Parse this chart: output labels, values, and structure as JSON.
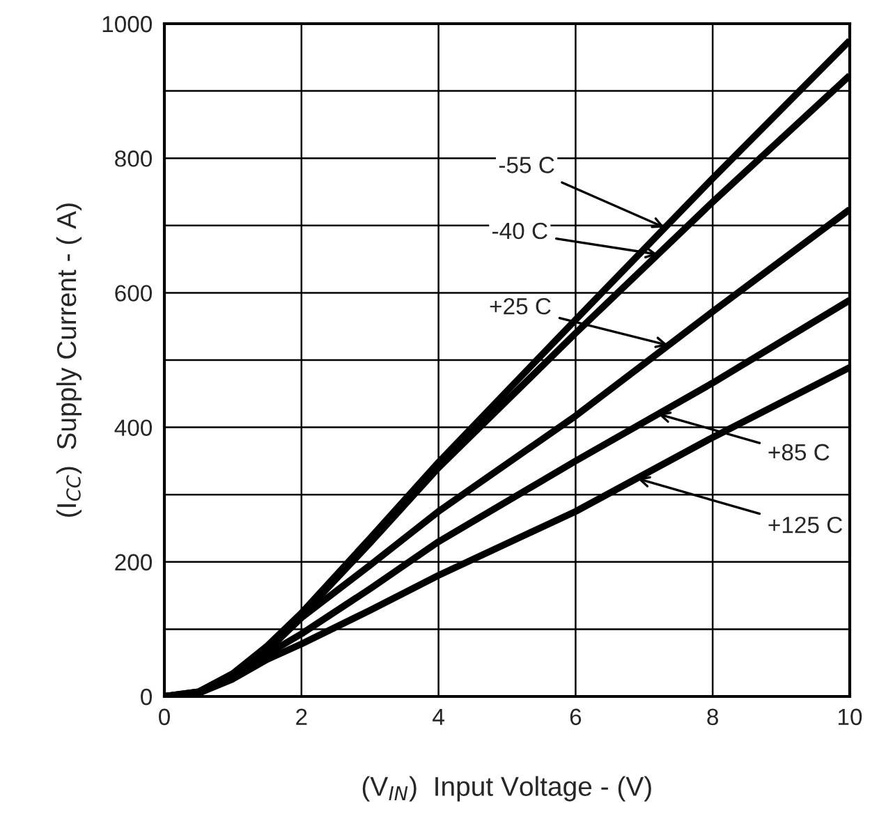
{
  "chart_data": {
    "type": "line",
    "xlabel": "(V$_{IN}$)  Input Voltage - (V)",
    "ylabel": "(I$_{CC}$)  Supply Current - ( A)",
    "x": [
      0,
      0.5,
      1,
      1.5,
      2,
      3,
      4,
      6,
      8,
      10
    ],
    "series": [
      {
        "color": "#000000",
        "values": [
          0,
          7,
          34,
          75,
          124,
          235,
          348,
          560,
          770,
          975
        ]
      },
      {
        "color": "#000000",
        "values": [
          0,
          7,
          33,
          73,
          120,
          228,
          340,
          540,
          735,
          923
        ]
      },
      {
        "color": "#000000",
        "values": [
          0,
          6,
          30,
          68,
          117,
          195,
          275,
          417,
          572,
          724
        ]
      },
      {
        "color": "#000000",
        "values": [
          0,
          5,
          28,
          63,
          93,
          160,
          230,
          350,
          466,
          589
        ]
      },
      {
        "color": "#000000",
        "values": [
          0,
          5,
          26,
          55,
          78,
          128,
          180,
          275,
          385,
          489
        ]
      }
    ],
    "annotations": [
      {
        "text": "-55 C",
        "x": 7.3,
        "y": 697
      },
      {
        "text": "-40 C",
        "x": 7.2,
        "y": 657
      },
      {
        "text": "+25 C",
        "x": 7.35,
        "y": 522
      },
      {
        "text": "+85 C",
        "x": 7.2,
        "y": 420
      },
      {
        "text": "+125 C",
        "x": 6.9,
        "y": 324
      }
    ],
    "xlim": [
      0,
      10
    ],
    "ylim": [
      0,
      1000
    ],
    "xticks": [
      0,
      2,
      4,
      6,
      8,
      10
    ],
    "yticks": [
      0,
      {
        "value": 100,
        "label": null
      },
      200,
      {
        "value": 300,
        "label": null
      },
      400,
      {
        "value": 500,
        "label": null
      },
      600,
      {
        "value": 700,
        "label": null
      },
      800,
      {
        "value": 900,
        "label": null
      },
      1000
    ],
    "grid": true,
    "legend": false,
    "line_style": "solid",
    "marker": "none"
  }
}
